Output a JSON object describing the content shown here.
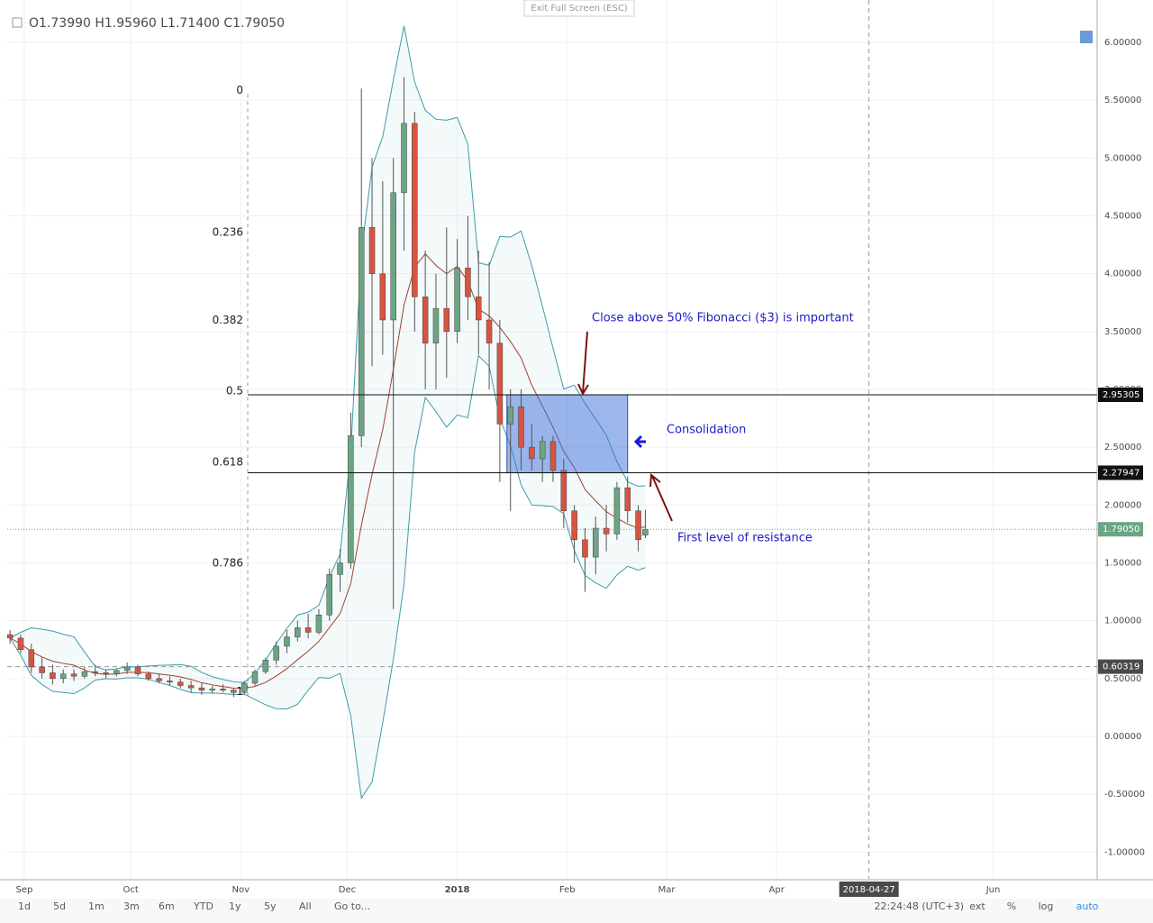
{
  "header": {
    "ohlc": "O1.73990 H1.95960 L1.71400 C1.79050",
    "exit": "Exit Full Screen (ESC)"
  },
  "toolbar": {
    "ranges": [
      "1d",
      "5d",
      "1m",
      "3m",
      "6m",
      "YTD",
      "1y",
      "5y",
      "All",
      "Go to..."
    ],
    "clock": "22:24:48 (UTC+3)",
    "options": [
      "ext",
      "%",
      "log",
      "auto"
    ]
  },
  "chart_data": {
    "type": "candlestick",
    "x": [
      -4,
      -1,
      2,
      5,
      8,
      11,
      14,
      17,
      20,
      23,
      26,
      29,
      32,
      35,
      38,
      41,
      44,
      47,
      50,
      53,
      56,
      59,
      62,
      65,
      68,
      71,
      74,
      77,
      80,
      83,
      86,
      89,
      92,
      95,
      98,
      101,
      104,
      107,
      110,
      113,
      116,
      119,
      122,
      125,
      128,
      131,
      134,
      137,
      140,
      143,
      146,
      149,
      152,
      155,
      158,
      161,
      164,
      167,
      170,
      173,
      175
    ],
    "open": [
      0.88,
      0.85,
      0.75,
      0.6,
      0.55,
      0.5,
      0.54,
      0.52,
      0.56,
      0.55,
      0.54,
      0.57,
      0.6,
      0.54,
      0.5,
      0.48,
      0.47,
      0.44,
      0.42,
      0.4,
      0.41,
      0.4,
      0.38,
      0.46,
      0.56,
      0.66,
      0.78,
      0.86,
      0.94,
      0.9,
      1.05,
      1.4,
      1.5,
      2.6,
      4.4,
      4.0,
      3.6,
      4.7,
      5.3,
      3.8,
      3.4,
      3.7,
      3.5,
      4.05,
      3.8,
      3.6,
      3.4,
      2.7,
      2.85,
      2.5,
      2.4,
      2.55,
      2.3,
      1.95,
      1.7,
      1.55,
      1.8,
      1.75,
      2.15,
      1.95,
      1.7399
    ],
    "high": [
      0.92,
      0.88,
      0.8,
      0.68,
      0.62,
      0.58,
      0.58,
      0.6,
      0.62,
      0.58,
      0.58,
      0.64,
      0.62,
      0.56,
      0.54,
      0.52,
      0.5,
      0.48,
      0.46,
      0.44,
      0.45,
      0.42,
      0.48,
      0.58,
      0.68,
      0.82,
      0.92,
      1.0,
      1.06,
      1.1,
      1.45,
      1.62,
      2.8,
      5.6,
      5.0,
      4.8,
      5.0,
      5.7,
      5.4,
      4.2,
      4.0,
      4.4,
      4.3,
      4.5,
      4.2,
      4.1,
      3.6,
      3.0,
      3.0,
      2.7,
      2.6,
      2.6,
      2.4,
      2.0,
      1.8,
      1.9,
      2.0,
      2.2,
      2.25,
      2.0,
      1.9596
    ],
    "low": [
      0.8,
      0.72,
      0.55,
      0.5,
      0.45,
      0.46,
      0.48,
      0.5,
      0.52,
      0.5,
      0.52,
      0.54,
      0.52,
      0.48,
      0.46,
      0.44,
      0.42,
      0.38,
      0.36,
      0.37,
      0.38,
      0.34,
      0.36,
      0.44,
      0.54,
      0.62,
      0.72,
      0.82,
      0.85,
      0.88,
      1.0,
      1.25,
      1.45,
      2.5,
      3.2,
      3.3,
      1.1,
      4.2,
      3.5,
      3.0,
      3.0,
      3.1,
      3.4,
      3.6,
      3.3,
      3.0,
      2.2,
      1.95,
      2.3,
      2.3,
      2.2,
      2.2,
      1.8,
      1.5,
      1.25,
      1.4,
      1.6,
      1.7,
      1.85,
      1.6,
      1.714
    ],
    "close": [
      0.85,
      0.75,
      0.6,
      0.55,
      0.5,
      0.54,
      0.52,
      0.56,
      0.55,
      0.54,
      0.57,
      0.6,
      0.54,
      0.5,
      0.48,
      0.47,
      0.44,
      0.42,
      0.4,
      0.41,
      0.4,
      0.38,
      0.46,
      0.56,
      0.66,
      0.78,
      0.86,
      0.94,
      0.9,
      1.05,
      1.4,
      1.5,
      2.6,
      4.4,
      4.0,
      3.6,
      4.7,
      5.3,
      3.8,
      3.4,
      3.7,
      3.5,
      4.05,
      3.8,
      3.6,
      3.4,
      2.7,
      2.85,
      2.5,
      2.4,
      2.55,
      2.3,
      1.95,
      1.7,
      1.55,
      1.8,
      1.75,
      2.15,
      1.95,
      1.7,
      1.7905
    ],
    "up_color": "#6ba583",
    "down_color": "#d75442",
    "band_color": "#3d9ca8",
    "ma_color": "#a0422c",
    "xlim": [
      -4.8,
      302.3
    ],
    "xticks": [
      {
        "value": 0,
        "label": "Sep"
      },
      {
        "value": 30,
        "label": "Oct"
      },
      {
        "value": 61,
        "label": "Nov"
      },
      {
        "value": 91,
        "label": "Dec"
      },
      {
        "value": 122,
        "label": "2018"
      },
      {
        "value": 153,
        "label": "Feb"
      },
      {
        "value": 181,
        "label": "Mar"
      },
      {
        "value": 212,
        "label": "Apr"
      },
      {
        "value": 273,
        "label": "Jun"
      }
    ],
    "cursor_x": {
      "value": 238,
      "label": "2018-04-27"
    },
    "ylim": [
      -1.231,
      6.366
    ],
    "yticks": [
      {
        "value": -1,
        "label": "-1.00000"
      },
      {
        "value": -0.5,
        "label": "-0.50000"
      },
      {
        "value": 0,
        "label": "0.00000"
      },
      {
        "value": 0.5,
        "label": "0.50000"
      },
      {
        "value": 1,
        "label": "1.00000"
      },
      {
        "value": 1.5,
        "label": "1.50000"
      },
      {
        "value": 2,
        "label": "2.00000"
      },
      {
        "value": 2.5,
        "label": "2.50000"
      },
      {
        "value": 3,
        "label": "3.00000"
      },
      {
        "value": 3.5,
        "label": "3.50000"
      },
      {
        "value": 4,
        "label": "4.00000"
      },
      {
        "value": 4.5,
        "label": "4.50000"
      },
      {
        "value": 5,
        "label": "5.00000"
      },
      {
        "value": 5.5,
        "label": "5.50000"
      },
      {
        "value": 6,
        "label": "6.00000"
      }
    ],
    "grid": true,
    "fib": {
      "high": 5.553,
      "low": 0.353,
      "levels": [
        0,
        0.236,
        0.382,
        0.5,
        0.618,
        0.786,
        1
      ]
    },
    "hlines": [
      2.95305,
      2.27947
    ],
    "last_price": {
      "value": 1.7905,
      "label": "1.79050"
    },
    "cursor_price": 0.60319,
    "box": {
      "x": [
        136,
        170
      ],
      "y": [
        2.27947,
        2.95305
      ]
    },
    "annotations": [
      "Close above 50% Fibonacci ($3) is important",
      "Consolidation",
      "First level of resistance"
    ]
  }
}
